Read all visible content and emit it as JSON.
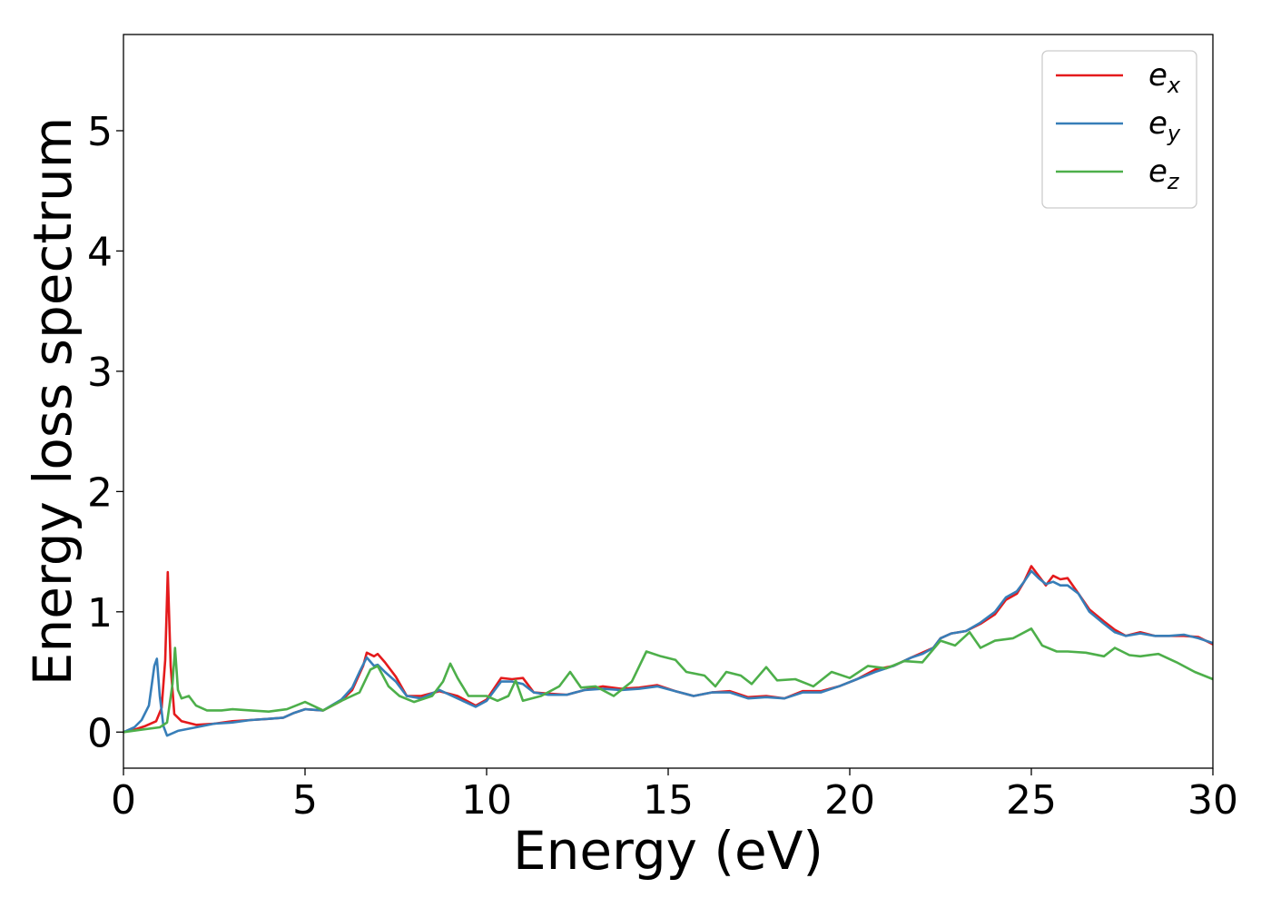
{
  "chart_data": {
    "type": "line",
    "xlabel": "Energy (eV)",
    "ylabel": "Energy loss spectrum",
    "xlim": [
      0,
      30
    ],
    "ylim": [
      -0.3,
      5.8
    ],
    "xticks": [
      0,
      5,
      10,
      15,
      20,
      25,
      30
    ],
    "yticks": [
      0,
      1,
      2,
      3,
      4,
      5
    ],
    "grid": false,
    "legend_position": "top-right",
    "series": [
      {
        "name": "e",
        "subscript": "x",
        "color": "#e41a1c",
        "points": [
          [
            0,
            0
          ],
          [
            0.3,
            0.02
          ],
          [
            0.6,
            0.05
          ],
          [
            0.9,
            0.09
          ],
          [
            1.05,
            0.2
          ],
          [
            1.15,
            0.6
          ],
          [
            1.22,
            1.33
          ],
          [
            1.3,
            0.55
          ],
          [
            1.4,
            0.15
          ],
          [
            1.6,
            0.09
          ],
          [
            2.0,
            0.06
          ],
          [
            2.5,
            0.07
          ],
          [
            3.0,
            0.09
          ],
          [
            3.5,
            0.1
          ],
          [
            4.0,
            0.11
          ],
          [
            4.4,
            0.12
          ],
          [
            4.7,
            0.16
          ],
          [
            5.0,
            0.19
          ],
          [
            5.5,
            0.18
          ],
          [
            6.0,
            0.26
          ],
          [
            6.3,
            0.35
          ],
          [
            6.6,
            0.55
          ],
          [
            6.7,
            0.66
          ],
          [
            6.9,
            0.63
          ],
          [
            7.0,
            0.65
          ],
          [
            7.2,
            0.58
          ],
          [
            7.5,
            0.46
          ],
          [
            7.8,
            0.3
          ],
          [
            8.2,
            0.3
          ],
          [
            8.7,
            0.34
          ],
          [
            9.2,
            0.3
          ],
          [
            9.7,
            0.22
          ],
          [
            10.0,
            0.27
          ],
          [
            10.4,
            0.45
          ],
          [
            10.7,
            0.44
          ],
          [
            11.0,
            0.45
          ],
          [
            11.3,
            0.33
          ],
          [
            11.7,
            0.32
          ],
          [
            12.2,
            0.31
          ],
          [
            12.7,
            0.35
          ],
          [
            13.2,
            0.38
          ],
          [
            13.7,
            0.36
          ],
          [
            14.2,
            0.37
          ],
          [
            14.7,
            0.39
          ],
          [
            15.2,
            0.34
          ],
          [
            15.7,
            0.3
          ],
          [
            16.2,
            0.33
          ],
          [
            16.7,
            0.34
          ],
          [
            17.2,
            0.29
          ],
          [
            17.7,
            0.3
          ],
          [
            18.2,
            0.28
          ],
          [
            18.7,
            0.34
          ],
          [
            19.2,
            0.34
          ],
          [
            19.7,
            0.38
          ],
          [
            20.2,
            0.44
          ],
          [
            20.7,
            0.52
          ],
          [
            21.2,
            0.55
          ],
          [
            21.7,
            0.62
          ],
          [
            22.0,
            0.66
          ],
          [
            22.3,
            0.7
          ],
          [
            22.5,
            0.78
          ],
          [
            22.8,
            0.82
          ],
          [
            23.2,
            0.84
          ],
          [
            23.6,
            0.9
          ],
          [
            24.0,
            0.98
          ],
          [
            24.3,
            1.1
          ],
          [
            24.6,
            1.15
          ],
          [
            24.8,
            1.25
          ],
          [
            25.0,
            1.38
          ],
          [
            25.2,
            1.3
          ],
          [
            25.4,
            1.22
          ],
          [
            25.6,
            1.3
          ],
          [
            25.8,
            1.27
          ],
          [
            26.0,
            1.28
          ],
          [
            26.3,
            1.15
          ],
          [
            26.6,
            1.02
          ],
          [
            27.0,
            0.92
          ],
          [
            27.3,
            0.85
          ],
          [
            27.6,
            0.8
          ],
          [
            28.0,
            0.83
          ],
          [
            28.4,
            0.8
          ],
          [
            28.8,
            0.8
          ],
          [
            29.2,
            0.8
          ],
          [
            29.6,
            0.79
          ],
          [
            30.0,
            0.73
          ]
        ]
      },
      {
        "name": "e",
        "subscript": "y",
        "color": "#377eb8",
        "points": [
          [
            0,
            0
          ],
          [
            0.3,
            0.04
          ],
          [
            0.5,
            0.1
          ],
          [
            0.7,
            0.22
          ],
          [
            0.85,
            0.55
          ],
          [
            0.92,
            0.61
          ],
          [
            1.0,
            0.3
          ],
          [
            1.1,
            0.05
          ],
          [
            1.2,
            -0.03
          ],
          [
            1.5,
            0.01
          ],
          [
            2.0,
            0.04
          ],
          [
            2.5,
            0.07
          ],
          [
            3.0,
            0.08
          ],
          [
            3.5,
            0.1
          ],
          [
            4.0,
            0.11
          ],
          [
            4.4,
            0.12
          ],
          [
            4.7,
            0.16
          ],
          [
            5.0,
            0.19
          ],
          [
            5.5,
            0.18
          ],
          [
            6.0,
            0.27
          ],
          [
            6.3,
            0.37
          ],
          [
            6.5,
            0.5
          ],
          [
            6.7,
            0.62
          ],
          [
            6.9,
            0.55
          ],
          [
            7.0,
            0.56
          ],
          [
            7.2,
            0.5
          ],
          [
            7.5,
            0.42
          ],
          [
            7.8,
            0.3
          ],
          [
            8.2,
            0.28
          ],
          [
            8.7,
            0.35
          ],
          [
            9.2,
            0.28
          ],
          [
            9.7,
            0.21
          ],
          [
            10.0,
            0.26
          ],
          [
            10.4,
            0.42
          ],
          [
            10.7,
            0.42
          ],
          [
            11.0,
            0.4
          ],
          [
            11.3,
            0.33
          ],
          [
            11.7,
            0.31
          ],
          [
            12.2,
            0.31
          ],
          [
            12.7,
            0.35
          ],
          [
            13.2,
            0.36
          ],
          [
            13.7,
            0.35
          ],
          [
            14.2,
            0.36
          ],
          [
            14.7,
            0.38
          ],
          [
            15.2,
            0.34
          ],
          [
            15.7,
            0.3
          ],
          [
            16.2,
            0.33
          ],
          [
            16.7,
            0.33
          ],
          [
            17.2,
            0.28
          ],
          [
            17.7,
            0.29
          ],
          [
            18.2,
            0.28
          ],
          [
            18.7,
            0.33
          ],
          [
            19.2,
            0.33
          ],
          [
            19.7,
            0.38
          ],
          [
            20.2,
            0.44
          ],
          [
            20.7,
            0.5
          ],
          [
            21.2,
            0.55
          ],
          [
            21.7,
            0.62
          ],
          [
            22.0,
            0.65
          ],
          [
            22.3,
            0.7
          ],
          [
            22.5,
            0.78
          ],
          [
            22.8,
            0.82
          ],
          [
            23.2,
            0.84
          ],
          [
            23.6,
            0.91
          ],
          [
            24.0,
            1.0
          ],
          [
            24.3,
            1.12
          ],
          [
            24.6,
            1.17
          ],
          [
            24.8,
            1.25
          ],
          [
            25.0,
            1.34
          ],
          [
            25.2,
            1.28
          ],
          [
            25.4,
            1.23
          ],
          [
            25.6,
            1.25
          ],
          [
            25.8,
            1.22
          ],
          [
            26.0,
            1.22
          ],
          [
            26.3,
            1.15
          ],
          [
            26.6,
            1.0
          ],
          [
            27.0,
            0.9
          ],
          [
            27.3,
            0.83
          ],
          [
            27.6,
            0.8
          ],
          [
            28.0,
            0.82
          ],
          [
            28.4,
            0.8
          ],
          [
            28.8,
            0.8
          ],
          [
            29.2,
            0.81
          ],
          [
            29.6,
            0.78
          ],
          [
            30.0,
            0.74
          ]
        ]
      },
      {
        "name": "e",
        "subscript": "z",
        "color": "#4daf4a",
        "points": [
          [
            0,
            0
          ],
          [
            0.5,
            0.02
          ],
          [
            1.0,
            0.04
          ],
          [
            1.2,
            0.08
          ],
          [
            1.35,
            0.4
          ],
          [
            1.42,
            0.7
          ],
          [
            1.5,
            0.35
          ],
          [
            1.6,
            0.28
          ],
          [
            1.8,
            0.3
          ],
          [
            2.0,
            0.22
          ],
          [
            2.3,
            0.18
          ],
          [
            2.7,
            0.18
          ],
          [
            3.0,
            0.19
          ],
          [
            3.5,
            0.18
          ],
          [
            4.0,
            0.17
          ],
          [
            4.5,
            0.19
          ],
          [
            5.0,
            0.25
          ],
          [
            5.5,
            0.18
          ],
          [
            6.0,
            0.26
          ],
          [
            6.5,
            0.33
          ],
          [
            6.8,
            0.52
          ],
          [
            7.0,
            0.55
          ],
          [
            7.3,
            0.38
          ],
          [
            7.6,
            0.3
          ],
          [
            8.0,
            0.25
          ],
          [
            8.5,
            0.3
          ],
          [
            8.8,
            0.42
          ],
          [
            9.0,
            0.57
          ],
          [
            9.2,
            0.45
          ],
          [
            9.5,
            0.3
          ],
          [
            10.0,
            0.3
          ],
          [
            10.3,
            0.26
          ],
          [
            10.6,
            0.3
          ],
          [
            10.8,
            0.43
          ],
          [
            11.0,
            0.26
          ],
          [
            11.5,
            0.3
          ],
          [
            12.0,
            0.38
          ],
          [
            12.3,
            0.5
          ],
          [
            12.6,
            0.37
          ],
          [
            13.0,
            0.38
          ],
          [
            13.5,
            0.3
          ],
          [
            14.0,
            0.42
          ],
          [
            14.4,
            0.67
          ],
          [
            14.8,
            0.63
          ],
          [
            15.2,
            0.6
          ],
          [
            15.5,
            0.5
          ],
          [
            16.0,
            0.47
          ],
          [
            16.3,
            0.38
          ],
          [
            16.6,
            0.5
          ],
          [
            17.0,
            0.47
          ],
          [
            17.3,
            0.4
          ],
          [
            17.7,
            0.54
          ],
          [
            18.0,
            0.43
          ],
          [
            18.5,
            0.44
          ],
          [
            19.0,
            0.38
          ],
          [
            19.5,
            0.5
          ],
          [
            20.0,
            0.45
          ],
          [
            20.5,
            0.55
          ],
          [
            21.0,
            0.53
          ],
          [
            21.5,
            0.59
          ],
          [
            22.0,
            0.58
          ],
          [
            22.5,
            0.76
          ],
          [
            22.9,
            0.72
          ],
          [
            23.3,
            0.83
          ],
          [
            23.6,
            0.7
          ],
          [
            24.0,
            0.76
          ],
          [
            24.5,
            0.78
          ],
          [
            25.0,
            0.86
          ],
          [
            25.3,
            0.72
          ],
          [
            25.7,
            0.67
          ],
          [
            26.0,
            0.67
          ],
          [
            26.5,
            0.66
          ],
          [
            27.0,
            0.63
          ],
          [
            27.3,
            0.7
          ],
          [
            27.7,
            0.64
          ],
          [
            28.0,
            0.63
          ],
          [
            28.5,
            0.65
          ],
          [
            29.0,
            0.58
          ],
          [
            29.5,
            0.5
          ],
          [
            30.0,
            0.44
          ]
        ]
      }
    ]
  }
}
